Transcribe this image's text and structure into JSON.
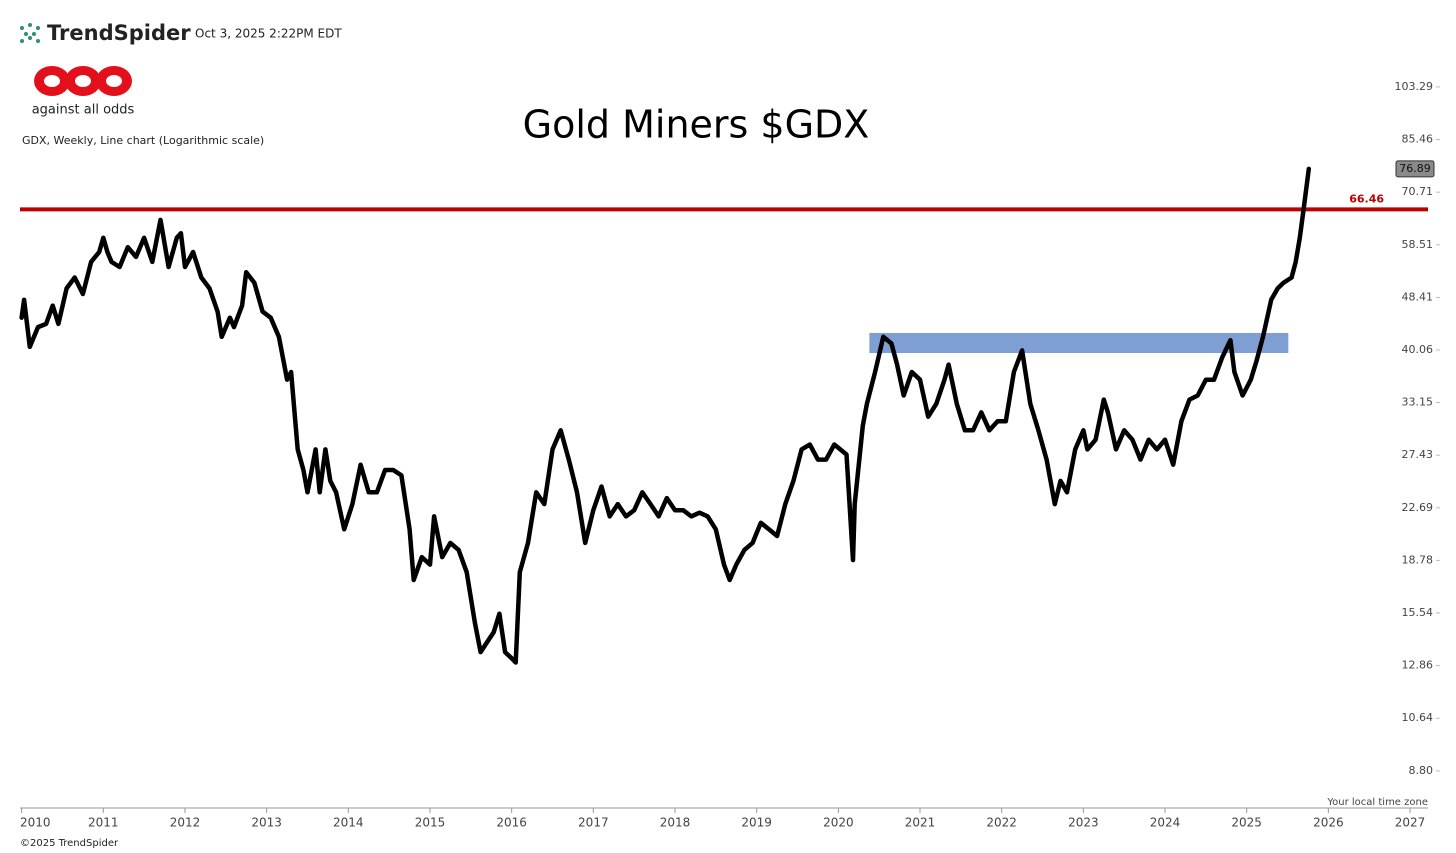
{
  "header": {
    "brand": "TrendSpider",
    "timestamp": "Oct 3, 2025 2:22PM EDT",
    "logo_caption": "against all odds",
    "footer": "©2025 TrendSpider"
  },
  "chart_data": {
    "type": "line",
    "title": "Gold Miners $GDX",
    "subtitle": "GDX, Weekly, Line chart (Logarithmic scale)",
    "timezone_note": "Your local time zone",
    "log_scale": true,
    "color": "#000000",
    "x": [
      2010.0,
      2010.03,
      2010.1,
      2010.2,
      2010.3,
      2010.38,
      2010.45,
      2010.55,
      2010.65,
      2010.75,
      2010.85,
      2010.95,
      2011.0,
      2011.05,
      2011.1,
      2011.2,
      2011.3,
      2011.4,
      2011.5,
      2011.6,
      2011.7,
      2011.8,
      2011.9,
      2011.95,
      2012.0,
      2012.1,
      2012.2,
      2012.3,
      2012.4,
      2012.45,
      2012.55,
      2012.6,
      2012.7,
      2012.75,
      2012.85,
      2012.95,
      2013.05,
      2013.15,
      2013.25,
      2013.3,
      2013.38,
      2013.45,
      2013.5,
      2013.6,
      2013.65,
      2013.72,
      2013.78,
      2013.85,
      2013.95,
      2014.05,
      2014.15,
      2014.25,
      2014.35,
      2014.45,
      2014.55,
      2014.65,
      2014.75,
      2014.8,
      2014.9,
      2015.0,
      2015.05,
      2015.15,
      2015.25,
      2015.35,
      2015.45,
      2015.55,
      2015.62,
      2015.7,
      2015.78,
      2015.85,
      2015.92,
      2016.0,
      2016.05,
      2016.1,
      2016.2,
      2016.3,
      2016.4,
      2016.5,
      2016.6,
      2016.7,
      2016.8,
      2016.9,
      2017.0,
      2017.1,
      2017.2,
      2017.3,
      2017.4,
      2017.5,
      2017.6,
      2017.7,
      2017.8,
      2017.9,
      2018.0,
      2018.1,
      2018.2,
      2018.3,
      2018.4,
      2018.5,
      2018.6,
      2018.67,
      2018.75,
      2018.85,
      2018.95,
      2019.05,
      2019.15,
      2019.25,
      2019.35,
      2019.45,
      2019.55,
      2019.65,
      2019.75,
      2019.85,
      2019.95,
      2020.1,
      2020.18,
      2020.2,
      2020.3,
      2020.35,
      2020.45,
      2020.55,
      2020.65,
      2020.72,
      2020.8,
      2020.9,
      2021.0,
      2021.1,
      2021.2,
      2021.3,
      2021.35,
      2021.45,
      2021.55,
      2021.65,
      2021.75,
      2021.85,
      2021.95,
      2022.05,
      2022.15,
      2022.25,
      2022.35,
      2022.45,
      2022.55,
      2022.65,
      2022.72,
      2022.8,
      2022.9,
      2023.0,
      2023.05,
      2023.15,
      2023.25,
      2023.3,
      2023.4,
      2023.5,
      2023.6,
      2023.7,
      2023.8,
      2023.9,
      2024.0,
      2024.1,
      2024.2,
      2024.3,
      2024.4,
      2024.5,
      2024.6,
      2024.7,
      2024.8,
      2024.85,
      2024.95,
      2025.05,
      2025.12,
      2025.2,
      2025.3,
      2025.38,
      2025.45,
      2025.55,
      2025.6,
      2025.65,
      2025.7,
      2025.76
    ],
    "values": [
      45,
      48,
      40.5,
      43.5,
      44,
      47,
      44,
      50,
      52,
      49,
      55,
      57,
      60,
      57,
      55,
      54,
      58,
      56,
      60,
      55,
      64,
      54,
      60,
      61,
      54,
      57,
      52,
      50,
      46,
      42,
      45,
      43.5,
      47,
      53,
      51,
      46,
      45,
      42,
      36,
      37,
      28,
      26,
      24,
      28,
      24,
      28,
      25,
      24,
      21,
      23,
      26.5,
      24,
      24,
      26,
      26,
      25.5,
      21,
      17.5,
      19,
      18.5,
      22,
      19,
      20,
      19.5,
      18,
      15,
      13.5,
      14,
      14.5,
      15.5,
      13.5,
      13.2,
      13,
      18,
      20,
      24,
      23,
      28,
      30,
      27,
      24,
      20,
      22.5,
      24.5,
      22,
      23,
      22,
      22.5,
      24,
      23,
      22,
      23.5,
      22.5,
      22.5,
      22,
      22.3,
      22,
      21,
      18.5,
      17.5,
      18.5,
      19.5,
      20,
      21.5,
      21,
      20.5,
      23,
      25,
      28,
      28.5,
      27,
      27,
      28.5,
      27.5,
      18.8,
      23,
      30.5,
      33,
      37,
      42,
      41,
      38,
      34,
      37,
      36,
      31.5,
      33,
      36,
      38,
      33,
      30,
      30,
      32,
      30,
      31,
      31,
      37,
      40,
      33,
      30,
      27,
      23,
      25,
      24,
      28,
      30,
      28,
      29,
      33.5,
      32,
      28,
      30,
      29,
      27,
      29,
      28,
      29,
      26.5,
      31,
      33.5,
      34,
      36,
      36,
      39,
      41.5,
      37,
      34,
      36,
      38.5,
      42,
      48,
      50,
      51,
      52,
      55,
      60,
      67,
      76.89
    ],
    "last_label": 76.89,
    "hline": {
      "value": 66.46,
      "color": "#c00000"
    },
    "zone": {
      "x": [
        2020.38,
        2025.51
      ],
      "y": [
        39.62,
        42.59
      ],
      "color": "#7f9fd4"
    },
    "xlim": [
      2009.98,
      2027.22
    ],
    "xticks": [
      2010,
      2011,
      2012,
      2013,
      2014,
      2015,
      2016,
      2017,
      2018,
      2019,
      2020,
      2021,
      2022,
      2023,
      2024,
      2025,
      2026,
      2027
    ],
    "ylim": [
      7.7,
      113.8
    ],
    "yticks": [
      {
        "value": 8.8,
        "label": "8.80"
      },
      {
        "value": 10.64,
        "label": "10.64"
      },
      {
        "value": 12.86,
        "label": "12.86"
      },
      {
        "value": 15.54,
        "label": "15.54"
      },
      {
        "value": 18.78,
        "label": "18.78"
      },
      {
        "value": 22.69,
        "label": "22.69"
      },
      {
        "value": 27.43,
        "label": "27.43"
      },
      {
        "value": 33.15,
        "label": "33.15"
      },
      {
        "value": 40.06,
        "label": "40.06"
      },
      {
        "value": 48.41,
        "label": "48.41"
      },
      {
        "value": 58.51,
        "label": "58.51"
      },
      {
        "value": 70.71,
        "label": "70.71"
      },
      {
        "value": 85.46,
        "label": "85.46"
      },
      {
        "value": 103.29,
        "label": "103.29"
      }
    ]
  }
}
